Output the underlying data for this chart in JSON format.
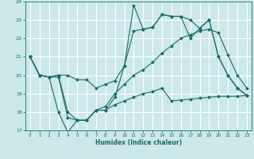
{
  "xlabel": "Humidex (Indice chaleur)",
  "bg_color": "#cce8e8",
  "grid_color": "#ffffff",
  "line_color": "#1a6b6b",
  "xlim": [
    -0.5,
    23.5
  ],
  "ylim": [
    17,
    24
  ],
  "yticks": [
    17,
    18,
    19,
    20,
    21,
    22,
    23,
    24
  ],
  "xticks": [
    0,
    1,
    2,
    3,
    4,
    5,
    6,
    7,
    8,
    9,
    10,
    11,
    12,
    13,
    14,
    15,
    16,
    17,
    18,
    19,
    20,
    21,
    22,
    23
  ],
  "line1_x": [
    0,
    1,
    2,
    3,
    4,
    5,
    6,
    7,
    8,
    9,
    10,
    11,
    12,
    13,
    14,
    15,
    16,
    17,
    18,
    19,
    20,
    21,
    22,
    23
  ],
  "line1_y": [
    21.0,
    20.0,
    19.9,
    20.0,
    20.0,
    19.75,
    19.75,
    19.3,
    19.5,
    19.7,
    20.5,
    23.8,
    22.5,
    22.6,
    23.3,
    23.2,
    23.2,
    23.0,
    22.55,
    23.0,
    21.0,
    20.0,
    19.3,
    18.9
  ],
  "line2_x": [
    0,
    1,
    2,
    3,
    4,
    5,
    6,
    7,
    8,
    9,
    10,
    11,
    12,
    13,
    14,
    15,
    16,
    17,
    18,
    19,
    20,
    21,
    22,
    23
  ],
  "line2_y": [
    21.0,
    20.0,
    19.9,
    20.0,
    18.0,
    17.55,
    17.55,
    18.1,
    18.1,
    18.8,
    20.5,
    22.4,
    22.5,
    22.6,
    23.3,
    23.2,
    23.2,
    22.0,
    22.55,
    23.0,
    21.0,
    20.0,
    19.3,
    18.9
  ],
  "line3_x": [
    0,
    1,
    2,
    3,
    4,
    5,
    6,
    7,
    8,
    9,
    10,
    11,
    12,
    13,
    14,
    15,
    16,
    17,
    18,
    19,
    20,
    21,
    22,
    23
  ],
  "line3_y": [
    21.0,
    20.0,
    19.9,
    19.9,
    17.7,
    17.55,
    17.55,
    18.1,
    18.3,
    19.0,
    19.5,
    20.0,
    20.3,
    20.7,
    21.2,
    21.6,
    22.0,
    22.2,
    22.4,
    22.5,
    22.3,
    21.1,
    20.0,
    19.3
  ],
  "line4_x": [
    0,
    1,
    2,
    3,
    4,
    5,
    6,
    7,
    8,
    9,
    10,
    11,
    12,
    13,
    14,
    15,
    16,
    17,
    18,
    19,
    20,
    21,
    22,
    23
  ],
  "line4_y": [
    21.0,
    20.0,
    19.9,
    18.0,
    16.9,
    17.55,
    17.55,
    18.1,
    18.1,
    18.4,
    18.6,
    18.8,
    19.0,
    19.1,
    19.3,
    18.6,
    18.65,
    18.7,
    18.75,
    18.8,
    18.85,
    18.85,
    18.85,
    18.9
  ]
}
